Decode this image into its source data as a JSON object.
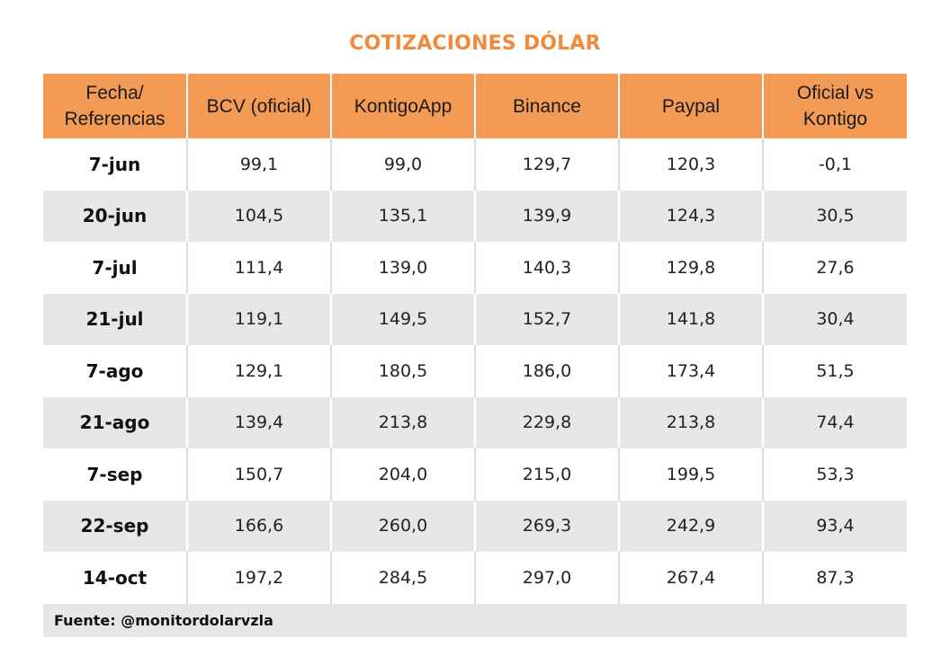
{
  "title": "COTIZACIONES DÓLAR",
  "table": {
    "headers": [
      {
        "line1": "Fecha/",
        "line2": "Referencias"
      },
      {
        "line1": "BCV (oficial)",
        "line2": ""
      },
      {
        "line1": "KontigoApp",
        "line2": ""
      },
      {
        "line1": "Binance",
        "line2": ""
      },
      {
        "line1": "Paypal",
        "line2": ""
      },
      {
        "line1": "Oficial vs",
        "line2": "Kontigo"
      }
    ],
    "rows": [
      [
        "7-jun",
        "99,1",
        "99,0",
        "129,7",
        "120,3",
        "-0,1"
      ],
      [
        "20-jun",
        "104,5",
        "135,1",
        "139,9",
        "124,3",
        "30,5"
      ],
      [
        "7-jul",
        "111,4",
        "139,0",
        "140,3",
        "129,8",
        "27,6"
      ],
      [
        "21-jul",
        "119,1",
        "149,5",
        "152,7",
        "141,8",
        "30,4"
      ],
      [
        "7-ago",
        "129,1",
        "180,5",
        "186,0",
        "173,4",
        "51,5"
      ],
      [
        "21-ago",
        "139,4",
        "213,8",
        "229,8",
        "213,8",
        "74,4"
      ],
      [
        "7-sep",
        "150,7",
        "204,0",
        "215,0",
        "199,5",
        "53,3"
      ],
      [
        "22-sep",
        "166,6",
        "260,0",
        "269,3",
        "242,9",
        "93,4"
      ],
      [
        "14-oct",
        "197,2",
        "284,5",
        "297,0",
        "267,4",
        "87,3"
      ]
    ]
  },
  "source": "Fuente: @monitordolarvzla",
  "colors": {
    "title": "#f08a3c",
    "header_bg": "#f39b55",
    "stripe_bg": "#e7e7e7"
  }
}
